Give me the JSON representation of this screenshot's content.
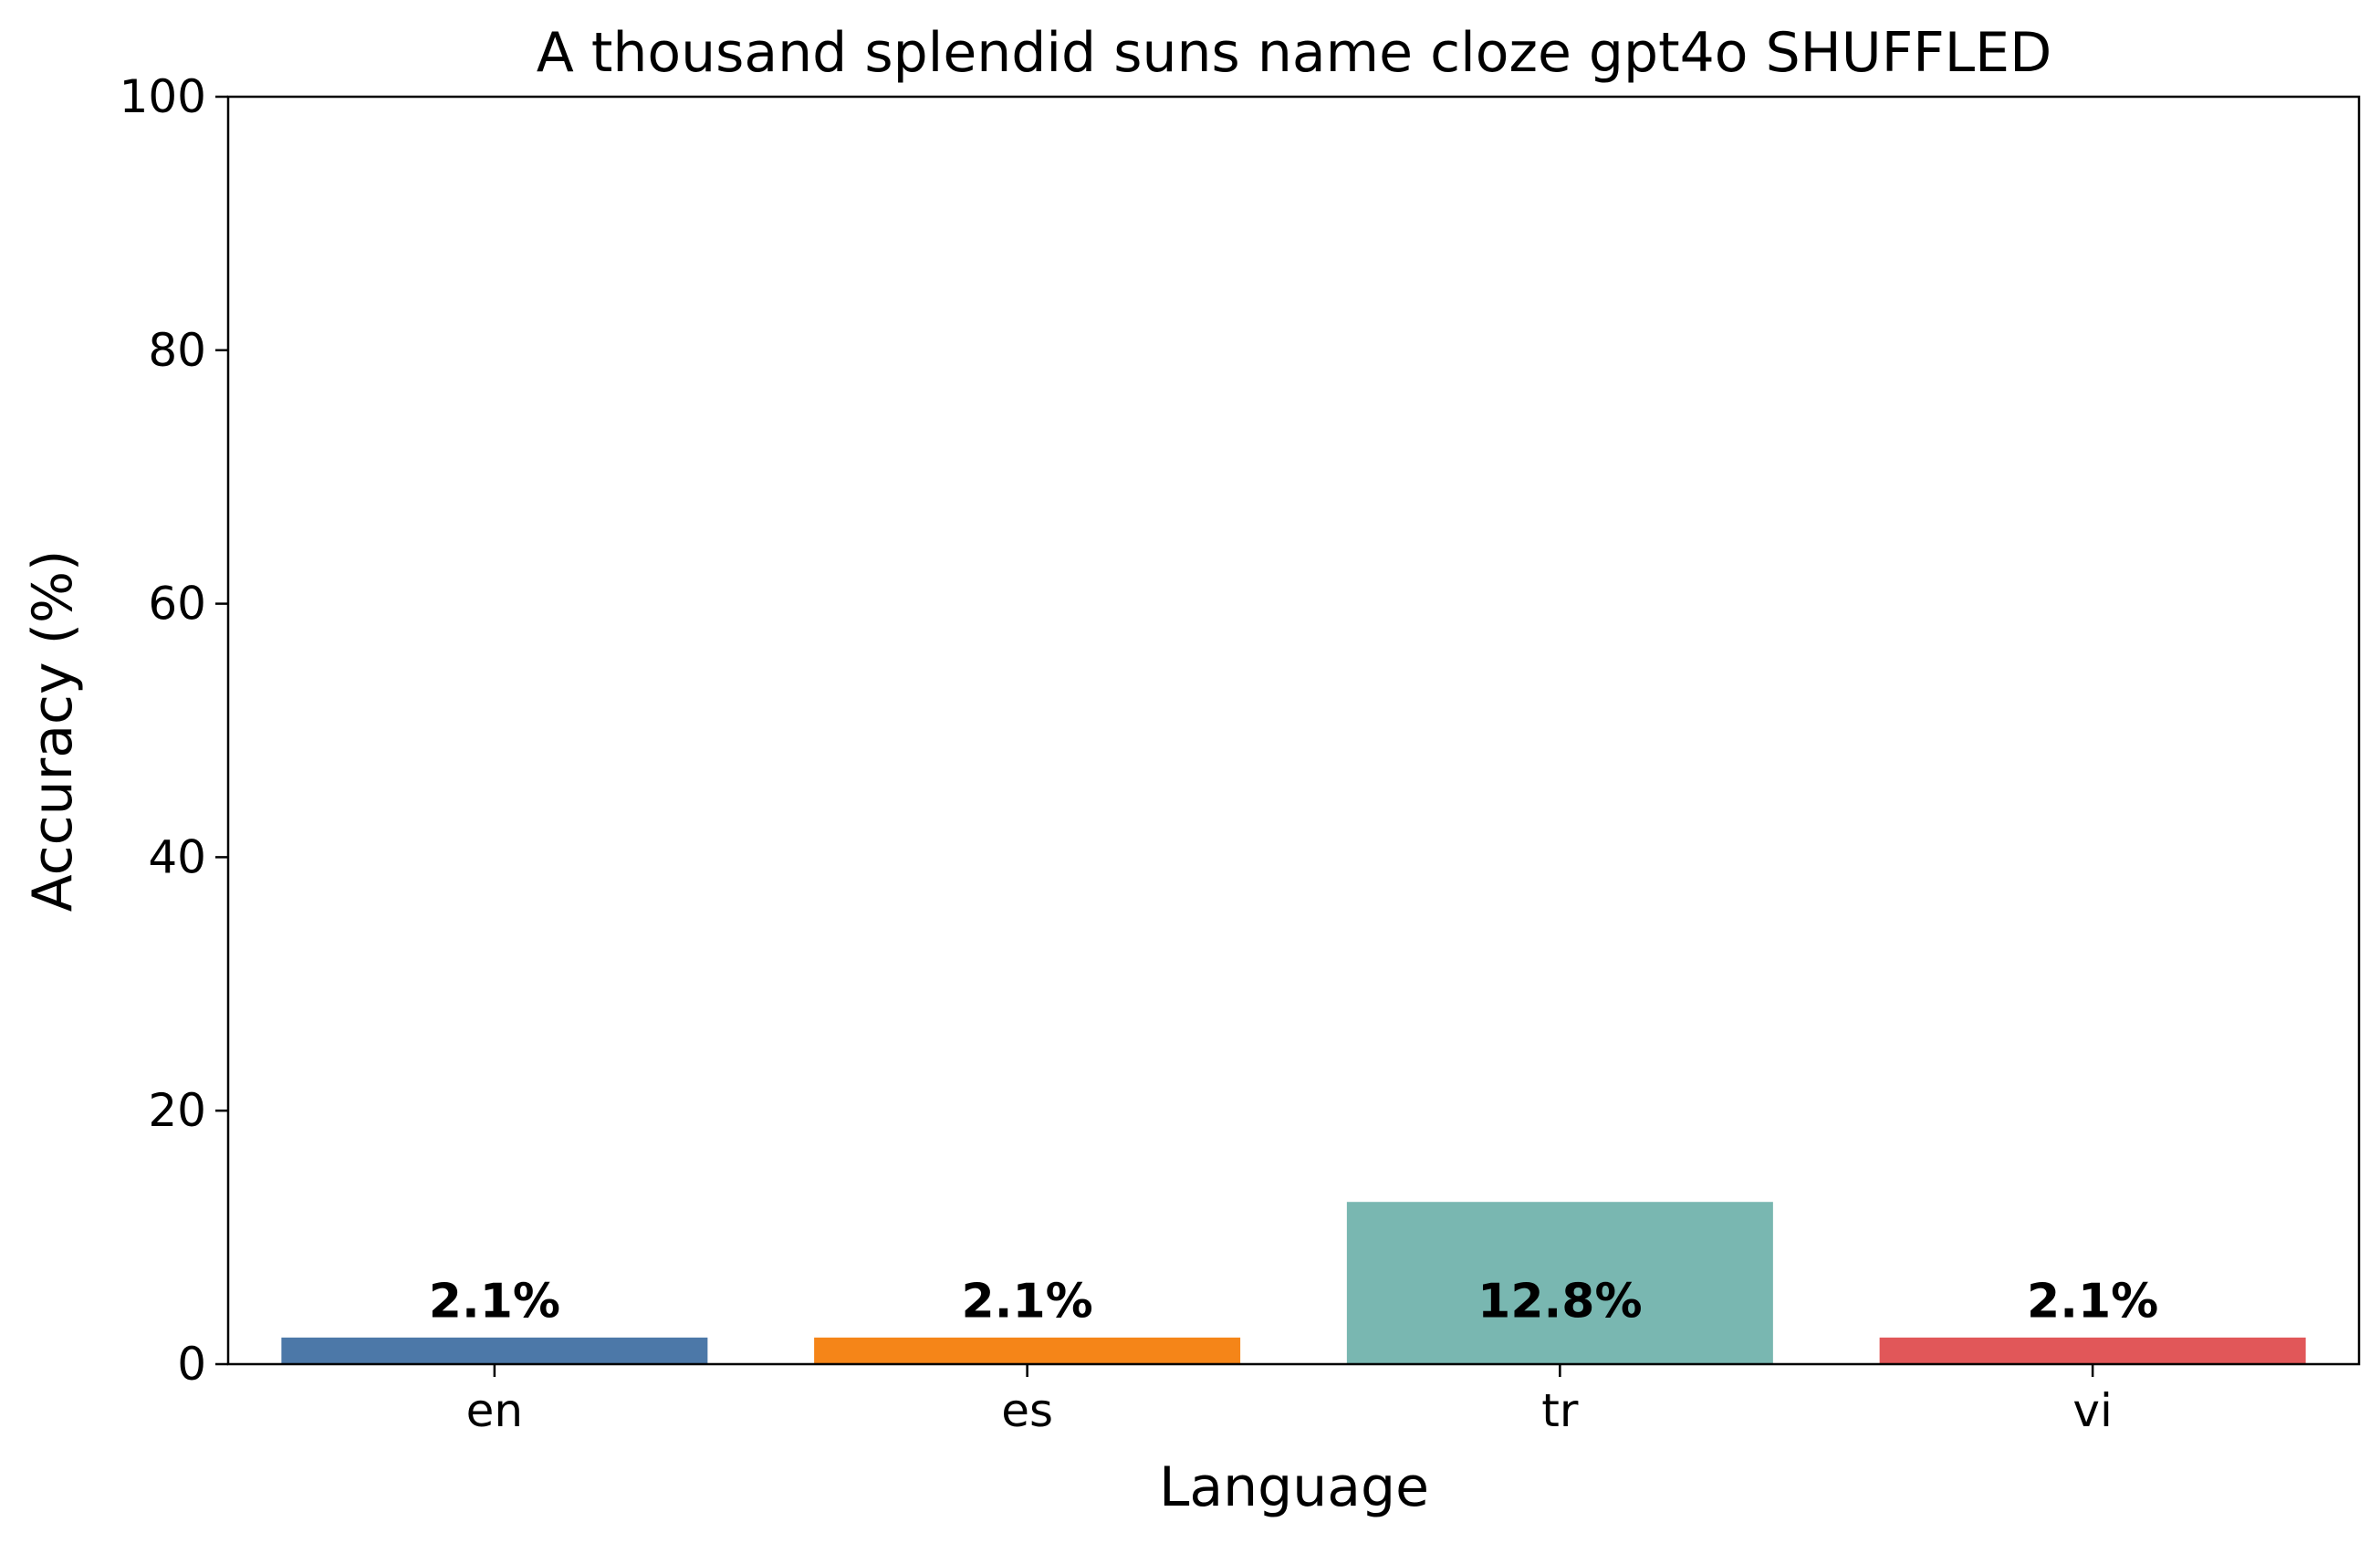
{
  "chart_data": {
    "type": "bar",
    "title": "A thousand splendid suns name cloze gpt4o SHUFFLED",
    "xlabel": "Language",
    "ylabel": "Accuracy (%)",
    "categories": [
      "en",
      "es",
      "tr",
      "vi"
    ],
    "values": [
      2.1,
      2.1,
      12.8,
      2.1
    ],
    "value_labels": [
      "2.1%",
      "2.1%",
      "12.8%",
      "2.1%"
    ],
    "colors": [
      "#4c78a8",
      "#f58518",
      "#79b7b1",
      "#e15759"
    ],
    "ylim": [
      0,
      100
    ],
    "yticks": [
      0,
      20,
      40,
      60,
      80,
      100
    ],
    "ytick_labels": [
      "0",
      "20",
      "40",
      "60",
      "80",
      "100"
    ],
    "grid": false,
    "legend": "none"
  }
}
